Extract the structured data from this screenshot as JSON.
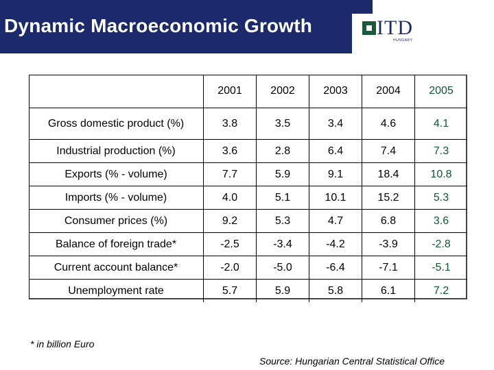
{
  "header": {
    "title": "Dynamic Macroeconomic Growth",
    "logo_text": "ITD",
    "logo_sub": "HUNGARY"
  },
  "table": {
    "years": [
      "2001",
      "2002",
      "2003",
      "2004",
      "2005"
    ],
    "rows": [
      {
        "label": "Gross domestic product (%)",
        "values": [
          "3.8",
          "3.5",
          "3.4",
          "4.6",
          "4.1"
        ]
      },
      {
        "label": "Industrial production (%)",
        "values": [
          "3.6",
          "2.8",
          "6.4",
          "7.4",
          "7.3"
        ]
      },
      {
        "label": "Exports (% - volume)",
        "values": [
          "7.7",
          "5.9",
          "9.1",
          "18.4",
          "10.8"
        ]
      },
      {
        "label": "Imports (% - volume)",
        "values": [
          "4.0",
          "5.1",
          "10.1",
          "15.2",
          "5.3"
        ]
      },
      {
        "label": "Consumer prices (%)",
        "values": [
          "9.2",
          "5.3",
          "4.7",
          "6.8",
          "3.6"
        ]
      },
      {
        "label": "Balance of foreign trade*",
        "values": [
          "-2.5",
          "-3.4",
          "-4.2",
          "-3.9",
          "-2.8"
        ]
      },
      {
        "label": "Current account balance*",
        "values": [
          "-2.0",
          "-5.0",
          "-6.4",
          "-7.1",
          "-5.1"
        ]
      },
      {
        "label": "Unemployment rate",
        "values": [
          "5.7",
          "5.9",
          "5.8",
          "6.1",
          "7.2"
        ]
      }
    ]
  },
  "footnote": "* in billion Euro",
  "source": "Source: Hungarian Central Statistical Office",
  "colors": {
    "brand": "#1a2a6c",
    "accent_2005": "#0a5a2a"
  }
}
